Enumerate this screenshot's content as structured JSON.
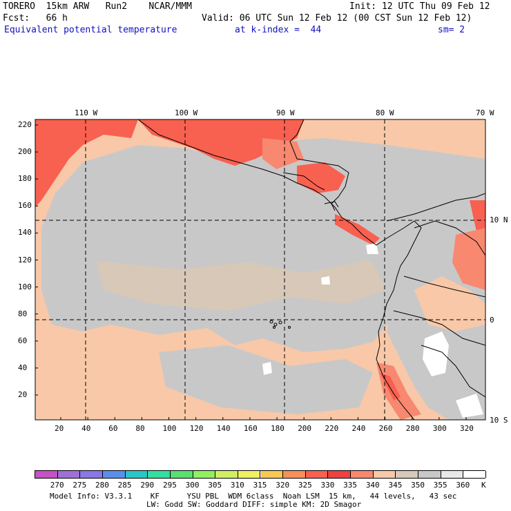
{
  "header": {
    "model": "TORERO",
    "resolution": "15km ARW",
    "run": "Run2",
    "org": "NCAR/MMM",
    "init": "Init: 12 UTC Thu 09 Feb 12",
    "fcst_label": "Fcst:",
    "fcst_value": "66 h",
    "valid": "Valid: 06 UTC Sun 12 Feb 12 (00 CST Sun 12 Feb 12)",
    "field": "Equivalent potential temperature",
    "level": "at k-index =  44",
    "smoothing": "sm= 2"
  },
  "map": {
    "top_lon_labels": [
      "110 W",
      "100 W",
      "90 W",
      "80 W",
      "70 W"
    ],
    "right_lat_labels": [
      "10 N",
      "0",
      "10 S"
    ],
    "y_ticks": [
      "220",
      "200",
      "180",
      "160",
      "140",
      "120",
      "100",
      "80",
      "60",
      "40",
      "20"
    ],
    "x_ticks": [
      "20",
      "40",
      "60",
      "80",
      "100",
      "120",
      "140",
      "160",
      "180",
      "200",
      "220",
      "240",
      "260",
      "280",
      "300",
      "320"
    ]
  },
  "colorbar": {
    "labels": [
      "270",
      "275",
      "280",
      "285",
      "290",
      "295",
      "300",
      "305",
      "310",
      "315",
      "320",
      "325",
      "330",
      "335",
      "340",
      "345",
      "350",
      "355",
      "360"
    ],
    "unit": "K",
    "colors": [
      "#c850c8",
      "#a070d8",
      "#8878e8",
      "#5890f0",
      "#28c8c8",
      "#30e0a0",
      "#58e070",
      "#90f060",
      "#d0f060",
      "#f0f060",
      "#f8c850",
      "#f89058",
      "#f86050",
      "#f04040",
      "#f88870",
      "#f8c8a8",
      "#d8c8b8",
      "#c8c8c8",
      "#e8e8e8",
      "#ffffff"
    ]
  },
  "footer": {
    "line1": "Model Info: V3.3.1    KF      YSU PBL  WDM 6class  Noah LSM  15 km,   44 levels,   43 sec",
    "line2": "LW: Godd SW: Goddard DIFF: simple KM: 2D Smagor"
  }
}
